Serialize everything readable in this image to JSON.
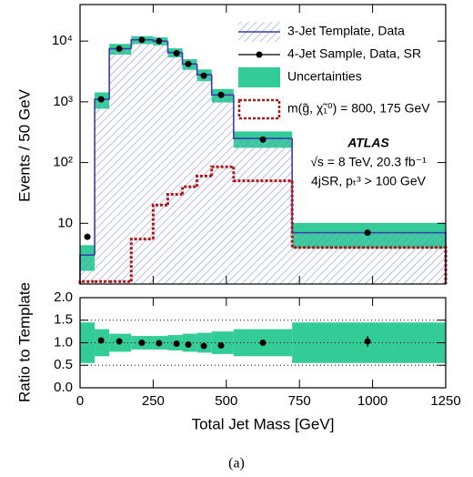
{
  "chart_data": [
    {
      "type": "histogram",
      "ylabel": "Events / 50 GeV",
      "bins": [
        0,
        50,
        100,
        175,
        250,
        300,
        350,
        400,
        450,
        525,
        725,
        1250
      ],
      "xlim": [
        0,
        1250
      ],
      "ylim": [
        1,
        40000
      ],
      "log_y": true,
      "yticks": [
        10,
        {
          "value": 100,
          "label": "10²"
        },
        {
          "value": 1000,
          "label": "10³"
        },
        {
          "value": 10000,
          "label": "10⁴"
        }
      ],
      "series": [
        {
          "name": "3-Jet Template, Data",
          "style": "hatched-step",
          "color": "#3b3bb0",
          "hatch_color": "#a0a0dc",
          "values": [
            3,
            1100,
            7500,
            10500,
            10000,
            6500,
            4200,
            2800,
            1300,
            250,
            7
          ]
        },
        {
          "name": "4-Jet Sample, Data, SR",
          "style": "points",
          "color": "#000000",
          "x": [
            25,
            72,
            134,
            211,
            270,
            330,
            370,
            423,
            482,
            625,
            983
          ],
          "values": [
            6,
            1100,
            7500,
            10500,
            10000,
            6300,
            4200,
            2700,
            1300,
            240,
            7
          ]
        },
        {
          "name": "Uncertainties",
          "style": "band",
          "color": "#33cc99",
          "low": [
            1.65,
            770,
            6000,
            8925,
            8500,
            5395,
            3360,
            2184,
            975,
            175,
            3.85
          ],
          "high": [
            4.35,
            1430,
            9000,
            12075,
            11500,
            7605,
            5040,
            3416,
            1625,
            325,
            10.15
          ]
        },
        {
          "name": "m(g̃, χ̃₁⁰) = 800, 175 GeV",
          "style": "dotted-step",
          "color": "#b01818",
          "values": [
            1.1,
            1.1,
            1.1,
            5.5,
            20,
            30,
            40,
            60,
            85,
            50,
            4
          ]
        }
      ],
      "annotations": [
        "ATLAS",
        "√s = 8 TeV, 20.3 fb⁻¹",
        "4jSR, pₜ³ > 100 GeV"
      ]
    },
    {
      "type": "histogram",
      "ylabel": "Ratio to Template",
      "xlabel": "Total Jet Mass [GeV]",
      "bins": [
        0,
        50,
        100,
        175,
        250,
        300,
        350,
        400,
        450,
        525,
        725,
        1250
      ],
      "xlim": [
        0,
        1250
      ],
      "xticks": [
        0,
        250,
        500,
        750,
        1000,
        1250
      ],
      "ylim": [
        0,
        2
      ],
      "yticks": [
        {
          "value": 0,
          "label": "0.0"
        },
        {
          "value": 0.5,
          "label": "0.5"
        },
        {
          "value": 1,
          "label": "1.0"
        },
        {
          "value": 1.5,
          "label": "1.5"
        },
        {
          "value": 2,
          "label": "2.0"
        }
      ],
      "reference_lines": [
        0.5,
        1,
        1.5
      ],
      "band": {
        "color": "#33cc99",
        "low": [
          0.55,
          0.7,
          0.8,
          0.85,
          0.85,
          0.83,
          0.8,
          0.78,
          0.75,
          0.7,
          0.55
        ],
        "high": [
          1.45,
          1.3,
          1.2,
          1.15,
          1.15,
          1.17,
          1.2,
          1.22,
          1.25,
          1.3,
          1.45
        ]
      },
      "points": {
        "color": "#000000",
        "x": [
          25,
          72,
          134,
          211,
          270,
          330,
          370,
          423,
          482,
          625,
          983
        ],
        "values": [
          null,
          1.05,
          1.03,
          1.0,
          0.99,
          0.98,
          0.96,
          0.93,
          0.94,
          1.0,
          1.03
        ],
        "errors": [
          null,
          0.03,
          0.01,
          0.01,
          0.01,
          0.01,
          0.02,
          0.02,
          0.03,
          0.04,
          0.12
        ]
      }
    }
  ],
  "caption": "(a)"
}
